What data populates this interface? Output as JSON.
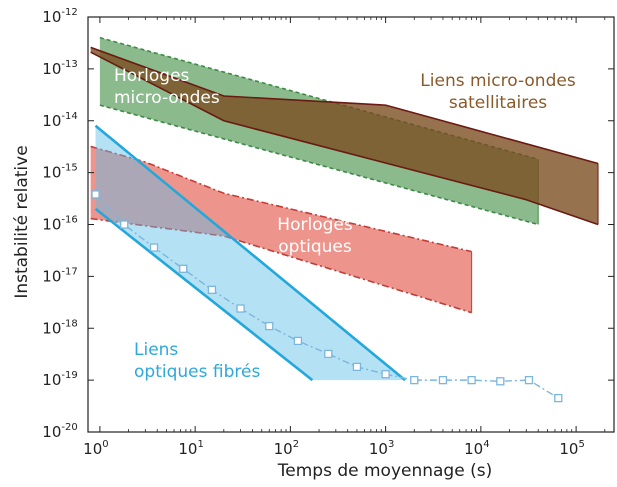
{
  "chart_data": {
    "type": "area",
    "xlabel": "Temps de moyennage (s)",
    "ylabel": "Instabilité relative",
    "x_scale": "log",
    "y_scale": "log",
    "xlim": [
      0.75,
      250000
    ],
    "ylim": [
      1e-20,
      1e-12
    ],
    "x_ticks": [
      {
        "value": 1,
        "base": "10",
        "exp": "0"
      },
      {
        "value": 10,
        "base": "10",
        "exp": "1"
      },
      {
        "value": 100,
        "base": "10",
        "exp": "2"
      },
      {
        "value": 1000,
        "base": "10",
        "exp": "3"
      },
      {
        "value": 10000,
        "base": "10",
        "exp": "4"
      },
      {
        "value": 100000,
        "base": "10",
        "exp": "5"
      }
    ],
    "y_ticks": [
      {
        "value": 1e-12,
        "base": "10",
        "exp": "-12"
      },
      {
        "value": 1e-13,
        "base": "10",
        "exp": "-13"
      },
      {
        "value": 1e-14,
        "base": "10",
        "exp": "-14"
      },
      {
        "value": 1e-15,
        "base": "10",
        "exp": "-15"
      },
      {
        "value": 1e-16,
        "base": "10",
        "exp": "-16"
      },
      {
        "value": 1e-17,
        "base": "10",
        "exp": "-17"
      },
      {
        "value": 1e-18,
        "base": "10",
        "exp": "-18"
      },
      {
        "value": 1e-19,
        "base": "10",
        "exp": "-19"
      },
      {
        "value": 1e-20,
        "base": "10",
        "exp": "-20"
      }
    ],
    "regions": [
      {
        "key": "micro-wave-clocks",
        "label_lines": [
          "Horloges",
          "micro-ondes"
        ],
        "label_color": "#ffffff",
        "fill": "#5a9e5c",
        "fill_opacity": 0.7,
        "stroke": "#3e8a45",
        "upper": [
          [
            1,
            4e-13
          ],
          [
            40000,
            1.8e-15
          ]
        ],
        "lower": [
          [
            1,
            2e-14
          ],
          [
            40000,
            1e-16
          ]
        ]
      },
      {
        "key": "satellite-links",
        "label_lines": [
          "Liens micro-ondes",
          "satellitaires"
        ],
        "label_color": "#8a5a2a",
        "fill": "#7a4a1e",
        "fill_opacity": 0.78,
        "stroke": "#6b1a12",
        "upper": [
          [
            0.8,
            2.6e-13
          ],
          [
            20,
            3e-14
          ],
          [
            1000,
            2e-14
          ],
          [
            170000,
            1.5e-15
          ]
        ],
        "lower": [
          [
            0.8,
            2.1e-13
          ],
          [
            20,
            1e-14
          ],
          [
            30000,
            3e-16
          ],
          [
            170000,
            1e-16
          ]
        ]
      },
      {
        "key": "optical-clocks",
        "label_lines": [
          "Horloges",
          "optiques"
        ],
        "label_color": "#ffffff",
        "fill": "#e45c4e",
        "fill_opacity": 0.65,
        "stroke": "#c43c38",
        "upper": [
          [
            0.8,
            3.2e-15
          ],
          [
            3,
            1.6e-15
          ],
          [
            20,
            4e-16
          ],
          [
            8000,
            3e-17
          ]
        ],
        "lower": [
          [
            0.8,
            1.3e-16
          ],
          [
            20,
            6e-17
          ],
          [
            8000,
            2e-18
          ]
        ]
      },
      {
        "key": "fiber-links",
        "label_lines": [
          "Liens",
          "optiques fibrés"
        ],
        "label_color": "#2ea8dc",
        "fill": "#5bbce8",
        "fill_opacity": 0.45,
        "stroke": "#22a8dc",
        "upper": [
          [
            0.9,
            8e-15
          ],
          [
            1600,
            1e-19
          ]
        ],
        "lower": [
          [
            0.9,
            2e-16
          ],
          [
            170,
            1e-19
          ]
        ]
      }
    ],
    "series": [
      {
        "key": "fiber-measurement",
        "color": "#7bb6dc",
        "marker": "square",
        "x": [
          0.9,
          1.8,
          3.7,
          7.5,
          15,
          30,
          60,
          120,
          250,
          500,
          1000,
          2000,
          4000,
          8000,
          16000,
          32000,
          65000
        ],
        "y": [
          3.8e-16,
          1e-16,
          3.6e-17,
          1.4e-17,
          5.5e-18,
          2.4e-18,
          1.1e-18,
          5.7e-19,
          3.2e-19,
          1.8e-19,
          1.3e-19,
          1e-19,
          1e-19,
          1e-19,
          9.5e-20,
          1e-19,
          4.5e-20
        ]
      }
    ],
    "grid": false
  }
}
